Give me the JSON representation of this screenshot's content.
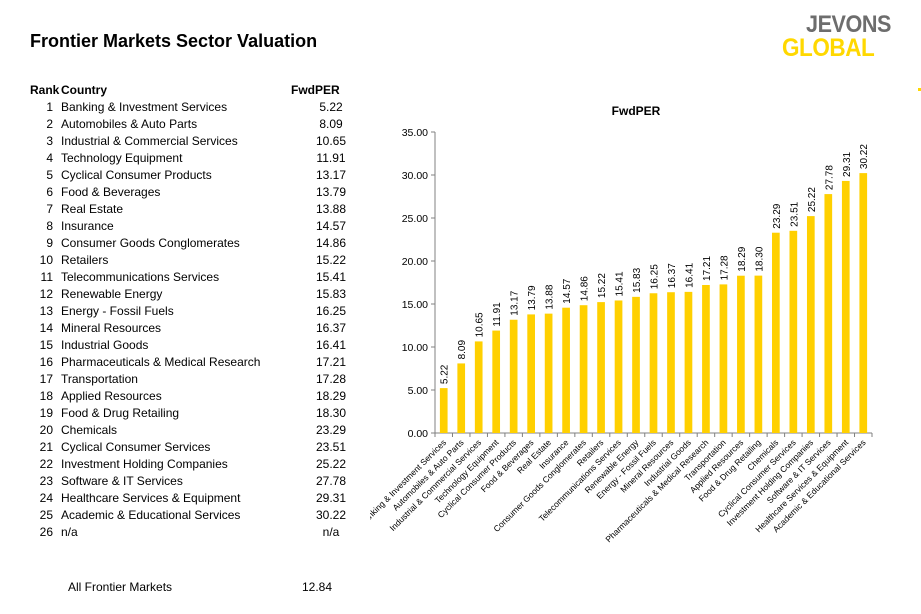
{
  "page": {
    "title": "Frontier Markets Sector Valuation"
  },
  "logo": {
    "line1": "JEVONS",
    "line2": "GLOBAL"
  },
  "table": {
    "headers": {
      "rank": "Rank",
      "country": "Country",
      "fwdper": "FwdPER"
    },
    "rows": [
      {
        "rank": "1",
        "country": "Banking & Investment Services",
        "fwdper": "5.22"
      },
      {
        "rank": "2",
        "country": "Automobiles & Auto Parts",
        "fwdper": "8.09"
      },
      {
        "rank": "3",
        "country": "Industrial & Commercial Services",
        "fwdper": "10.65"
      },
      {
        "rank": "4",
        "country": "Technology Equipment",
        "fwdper": "11.91"
      },
      {
        "rank": "5",
        "country": "Cyclical Consumer Products",
        "fwdper": "13.17"
      },
      {
        "rank": "6",
        "country": "Food & Beverages",
        "fwdper": "13.79"
      },
      {
        "rank": "7",
        "country": "Real Estate",
        "fwdper": "13.88"
      },
      {
        "rank": "8",
        "country": "Insurance",
        "fwdper": "14.57"
      },
      {
        "rank": "9",
        "country": "Consumer Goods Conglomerates",
        "fwdper": "14.86"
      },
      {
        "rank": "10",
        "country": "Retailers",
        "fwdper": "15.22"
      },
      {
        "rank": "11",
        "country": "Telecommunications Services",
        "fwdper": "15.41"
      },
      {
        "rank": "12",
        "country": "Renewable Energy",
        "fwdper": "15.83"
      },
      {
        "rank": "13",
        "country": "Energy - Fossil Fuels",
        "fwdper": "16.25"
      },
      {
        "rank": "14",
        "country": "Mineral Resources",
        "fwdper": "16.37"
      },
      {
        "rank": "15",
        "country": "Industrial Goods",
        "fwdper": "16.41"
      },
      {
        "rank": "16",
        "country": "Pharmaceuticals & Medical Research",
        "fwdper": "17.21"
      },
      {
        "rank": "17",
        "country": "Transportation",
        "fwdper": "17.28"
      },
      {
        "rank": "18",
        "country": "Applied Resources",
        "fwdper": "18.29"
      },
      {
        "rank": "19",
        "country": "Food & Drug Retailing",
        "fwdper": "18.30"
      },
      {
        "rank": "20",
        "country": "Chemicals",
        "fwdper": "23.29"
      },
      {
        "rank": "21",
        "country": "Cyclical Consumer Services",
        "fwdper": "23.51"
      },
      {
        "rank": "22",
        "country": "Investment Holding Companies",
        "fwdper": "25.22"
      },
      {
        "rank": "23",
        "country": "Software & IT Services",
        "fwdper": "27.78"
      },
      {
        "rank": "24",
        "country": "Healthcare Services & Equipment",
        "fwdper": "29.31"
      },
      {
        "rank": "25",
        "country": "Academic & Educational Services",
        "fwdper": "30.22"
      },
      {
        "rank": "26",
        "country": "n/a",
        "fwdper": "n/a"
      }
    ],
    "total": {
      "label": "All Frontier Markets",
      "value": "12.84"
    }
  },
  "chart_data": {
    "type": "bar",
    "title": "FwdPER",
    "xlabel": "",
    "ylabel": "",
    "ylim": [
      0,
      35
    ],
    "yticks": [
      "0.00",
      "5.00",
      "10.00",
      "15.00",
      "20.00",
      "25.00",
      "30.00",
      "35.00"
    ],
    "bar_color": "#ffd000",
    "categories": [
      "Banking & Investment Services",
      "Automobiles & Auto Parts",
      "Industrial & Commercial Services",
      "Technology Equipment",
      "Cyclical Consumer Products",
      "Food & Beverages",
      "Real Estate",
      "Insurance",
      "Consumer Goods Conglomerates",
      "Retailers",
      "Telecommunications Services",
      "Renewable Energy",
      "Energy - Fossil Fuels",
      "Mineral Resources",
      "Industrial Goods",
      "Pharmaceuticals & Medical Research",
      "Transportation",
      "Applied Resources",
      "Food & Drug Retailing",
      "Chemicals",
      "Cyclical Consumer Services",
      "Investment Holding Companies",
      "Software & IT Services",
      "Healthcare Services & Equipment",
      "Academic & Educational Services"
    ],
    "values": [
      5.22,
      8.09,
      10.65,
      11.91,
      13.17,
      13.79,
      13.88,
      14.57,
      14.86,
      15.22,
      15.41,
      15.83,
      16.25,
      16.37,
      16.41,
      17.21,
      17.28,
      18.29,
      18.3,
      23.29,
      23.51,
      25.22,
      27.78,
      29.31,
      30.22
    ],
    "labels": [
      "5.22",
      "8.09",
      "10.65",
      "11.91",
      "13.17",
      "13.79",
      "13.88",
      "14.57",
      "14.86",
      "15.22",
      "15.41",
      "15.83",
      "16.25",
      "16.37",
      "16.41",
      "17.21",
      "17.28",
      "18.29",
      "18.30",
      "23.29",
      "23.51",
      "25.22",
      "27.78",
      "29.31",
      "30.22"
    ],
    "grid": false,
    "legend": "none"
  }
}
